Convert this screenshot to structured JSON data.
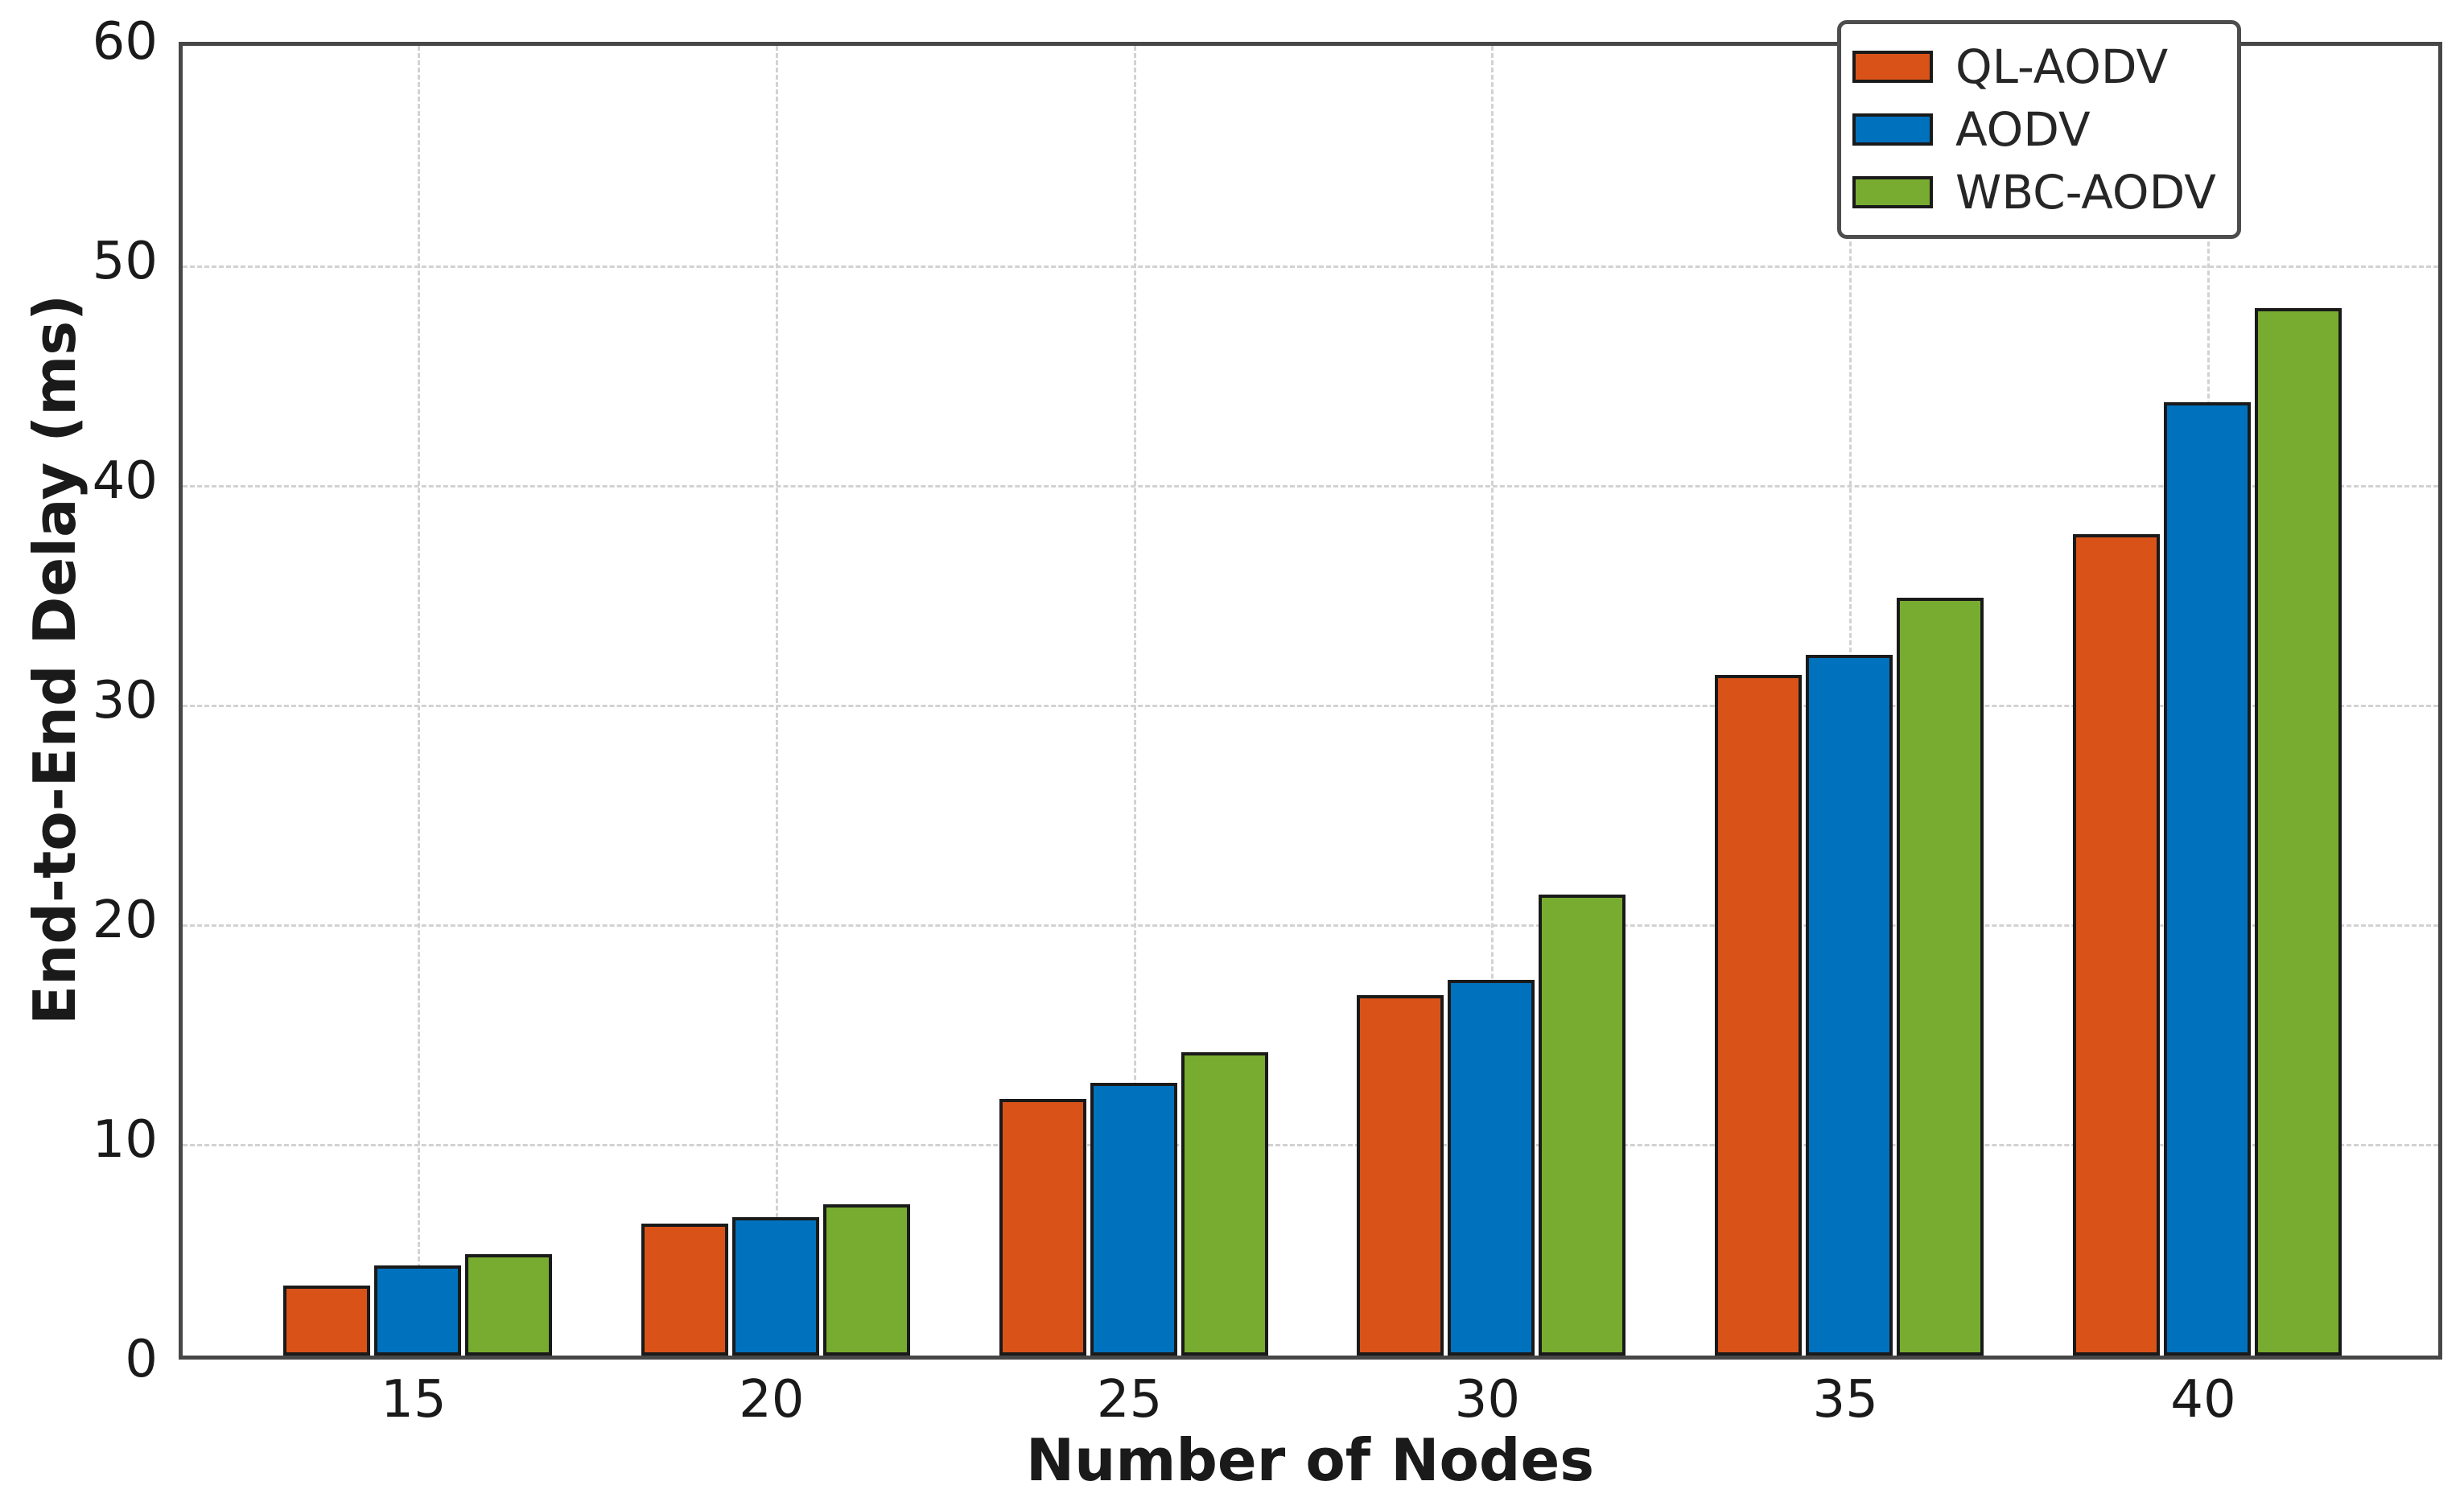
{
  "chart_data": {
    "type": "bar",
    "title": "",
    "xlabel": "Number of Nodes",
    "ylabel": "End-to-End Delay (ms)",
    "categories": [
      "15",
      "20",
      "25",
      "30",
      "35",
      "40"
    ],
    "series": [
      {
        "name": "QL-AODV",
        "color": "#D95319",
        "values": [
          3.2,
          6.0,
          11.7,
          16.4,
          31.0,
          37.4
        ]
      },
      {
        "name": "AODV",
        "color": "#0072BD",
        "values": [
          4.1,
          6.3,
          12.4,
          17.1,
          31.9,
          43.4
        ]
      },
      {
        "name": "WBC-AODV",
        "color": "#77AC30",
        "values": [
          4.6,
          6.9,
          13.8,
          21.0,
          34.5,
          47.7
        ]
      }
    ],
    "ylim": [
      0,
      60
    ],
    "yticks": [
      0,
      10,
      20,
      30,
      40,
      50,
      60
    ],
    "grid": true,
    "grid_style": "dashed",
    "legend_position": "upper-right",
    "bar_edge_color": "#1a1a1a",
    "axis_color": "#474747",
    "grid_color": "#d2d2d2",
    "tick_label_color": "#1a1a1a"
  }
}
